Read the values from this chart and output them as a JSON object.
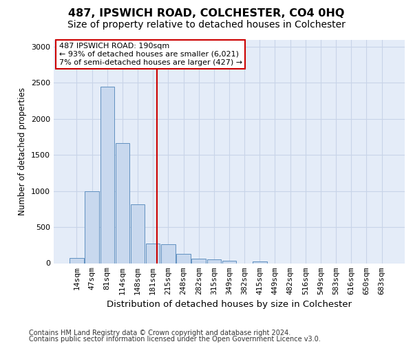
{
  "title": "487, IPSWICH ROAD, COLCHESTER, CO4 0HQ",
  "subtitle": "Size of property relative to detached houses in Colchester",
  "xlabel": "Distribution of detached houses by size in Colchester",
  "ylabel": "Number of detached properties",
  "categories": [
    "14sqm",
    "47sqm",
    "81sqm",
    "114sqm",
    "148sqm",
    "181sqm",
    "215sqm",
    "248sqm",
    "282sqm",
    "315sqm",
    "349sqm",
    "382sqm",
    "415sqm",
    "449sqm",
    "482sqm",
    "516sqm",
    "549sqm",
    "583sqm",
    "616sqm",
    "650sqm",
    "683sqm"
  ],
  "values": [
    70,
    1000,
    2450,
    1660,
    820,
    270,
    265,
    125,
    60,
    55,
    30,
    0,
    25,
    0,
    0,
    0,
    0,
    0,
    0,
    0,
    0
  ],
  "bar_color": "#c8d8ee",
  "bar_edge_color": "#6090c0",
  "grid_color": "#c8d4e8",
  "background_color": "#e4ecf8",
  "annotation_box_text": "487 IPSWICH ROAD: 190sqm\n← 93% of detached houses are smaller (6,021)\n7% of semi-detached houses are larger (427) →",
  "annotation_box_color": "#ffffff",
  "annotation_box_edge_color": "#cc0000",
  "vline_color": "#cc0000",
  "footer_line1": "Contains HM Land Registry data © Crown copyright and database right 2024.",
  "footer_line2": "Contains public sector information licensed under the Open Government Licence v3.0.",
  "ylim": [
    0,
    3100
  ],
  "yticks": [
    0,
    500,
    1000,
    1500,
    2000,
    2500,
    3000
  ],
  "title_fontsize": 11.5,
  "subtitle_fontsize": 10,
  "xlabel_fontsize": 9.5,
  "ylabel_fontsize": 8.5,
  "tick_fontsize": 8,
  "annot_fontsize": 8,
  "footer_fontsize": 7
}
